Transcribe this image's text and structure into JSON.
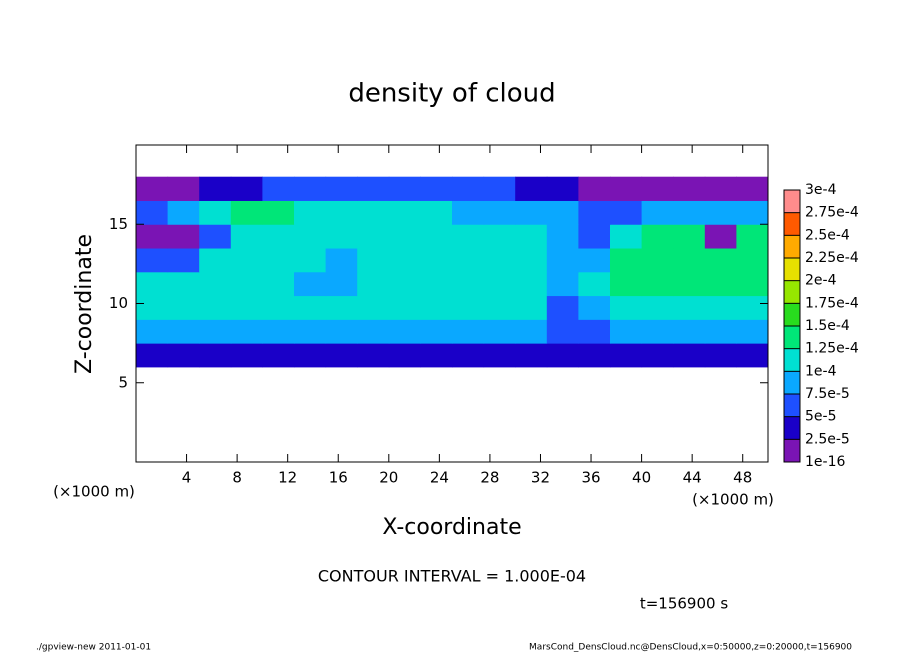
{
  "chart_data": {
    "type": "heatmap",
    "title": "density of cloud",
    "x_label": "X-coordinate",
    "y_label": "Z-coordinate",
    "x_unit": "(×1000 m)",
    "y_unit": "(×1000 m)",
    "xlim": [
      0,
      50
    ],
    "ylim": [
      0,
      20
    ],
    "xticks": [
      4,
      8,
      12,
      16,
      20,
      24,
      28,
      32,
      36,
      40,
      44,
      48
    ],
    "yticks": [
      5,
      10,
      15
    ],
    "x": [
      0,
      2.5,
      5,
      7.5,
      10,
      12.5,
      15,
      17.5,
      20,
      22.5,
      25,
      27.5,
      30,
      32.5,
      35,
      37.5,
      40,
      42.5,
      45,
      47.5,
      50
    ],
    "z": [
      6,
      7.5,
      9,
      10.5,
      12,
      13.5,
      15,
      16.5,
      18
    ],
    "values": [
      [
        3e-05,
        3e-05,
        3e-05,
        3e-05,
        3e-05,
        3e-05,
        3e-05,
        3e-05,
        3e-05,
        3e-05,
        3e-05,
        3e-05,
        3e-05,
        3e-05,
        3e-05,
        3e-05,
        3e-05,
        3e-05,
        3e-05,
        3e-05
      ],
      [
        8e-05,
        8e-05,
        8e-05,
        8e-05,
        8e-05,
        8e-05,
        8e-05,
        8e-05,
        8e-05,
        8e-05,
        8e-05,
        8e-05,
        8e-05,
        6e-05,
        6e-05,
        8e-05,
        8e-05,
        8e-05,
        8e-05,
        8e-05
      ],
      [
        0.00011,
        0.00011,
        0.00011,
        0.00011,
        0.00011,
        0.00011,
        0.00011,
        0.00011,
        0.00011,
        0.00011,
        0.00011,
        0.00011,
        0.00011,
        6e-05,
        8e-05,
        0.00011,
        0.00011,
        0.00011,
        0.00011,
        0.00011
      ],
      [
        0.00012,
        0.00012,
        0.00011,
        0.00012,
        0.00012,
        9e-05,
        9e-05,
        0.00011,
        0.00011,
        0.00012,
        0.00012,
        0.00012,
        0.00011,
        9e-05,
        0.000105,
        0.00013,
        0.00013,
        0.00013,
        0.00014,
        0.00013
      ],
      [
        6e-05,
        6e-05,
        0.00011,
        0.00012,
        0.00012,
        0.00011,
        9e-05,
        0.00011,
        0.00011,
        0.00012,
        0.00012,
        0.00011,
        0.00011,
        9e-05,
        8e-05,
        0.00013,
        0.00014,
        0.00014,
        0.00013,
        0.00014
      ],
      [
        2e-05,
        2e-05,
        6e-05,
        0.00012,
        0.00012,
        0.00011,
        0.00011,
        0.00012,
        0.00011,
        0.00011,
        0.00011,
        0.00011,
        0.00011,
        9e-05,
        6e-05,
        0.00012,
        0.00013,
        0.00013,
        2e-05,
        0.00013
      ],
      [
        6e-05,
        8e-05,
        0.00012,
        0.00013,
        0.00013,
        0.00012,
        0.00012,
        0.00012,
        0.00012,
        0.00011,
        9e-05,
        9e-05,
        9e-05,
        9e-05,
        5.5e-05,
        5.5e-05,
        9e-05,
        9e-05,
        9e-05,
        8e-05
      ],
      [
        1e-05,
        1e-05,
        4e-05,
        4e-05,
        6e-05,
        6e-05,
        6e-05,
        6e-05,
        6e-05,
        6e-05,
        6e-05,
        6e-05,
        4e-05,
        4e-05,
        1e-05,
        1e-05,
        1e-05,
        1e-05,
        1e-05,
        1e-05
      ]
    ],
    "colorbar_ticks": [
      {
        "value": 1e-16,
        "label": "1e-16"
      },
      {
        "value": 2.5e-05,
        "label": "2.5e-5"
      },
      {
        "value": 5e-05,
        "label": "5e-5"
      },
      {
        "value": 7.5e-05,
        "label": "7.5e-5"
      },
      {
        "value": 0.0001,
        "label": "1e-4"
      },
      {
        "value": 0.000125,
        "label": "1.25e-4"
      },
      {
        "value": 0.00015,
        "label": "1.5e-4"
      },
      {
        "value": 0.000175,
        "label": "1.75e-4"
      },
      {
        "value": 0.0002,
        "label": "2e-4"
      },
      {
        "value": 0.000225,
        "label": "2.25e-4"
      },
      {
        "value": 0.00025,
        "label": "2.5e-4"
      },
      {
        "value": 0.000275,
        "label": "2.75e-4"
      },
      {
        "value": 0.0003,
        "label": "3e-4"
      }
    ],
    "colors": [
      "#7a14b4",
      "#1a00c8",
      "#1e50ff",
      "#0aa8ff",
      "#00e0d2",
      "#00e678",
      "#28dc1e",
      "#96e600",
      "#e6e000",
      "#ffaa00",
      "#ff5a00",
      "#ff8c8c"
    ],
    "contour_note": "CONTOUR INTERVAL = 1.000E-04",
    "time_label": "t=156900 s",
    "footer_left": "./gpview-new  2011-01-01",
    "footer_right": "MarsCond_DensCloud.nc@DensCloud,x=0:50000,z=0:20000,t=156900"
  }
}
